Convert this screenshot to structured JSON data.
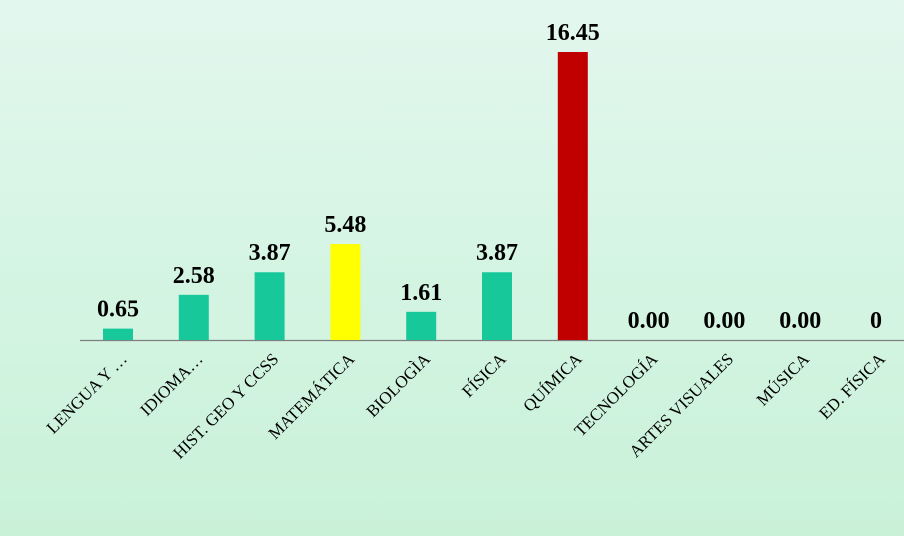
{
  "chart_data": {
    "type": "bar",
    "categories": [
      "LENGUA Y …",
      "IDIOMA…",
      "HIST. GEO Y CCSS",
      "MATEMÁTICA",
      "BIOLOGÌA",
      "FÍSICA",
      "QUÍMICA",
      "TECNOLOGÍA",
      "ARTES VISUALES",
      "MÚSICA",
      "ED. FÍSICA"
    ],
    "values": [
      0.65,
      2.58,
      3.87,
      5.48,
      1.61,
      3.87,
      16.45,
      0.0,
      0.0,
      0.0,
      0
    ],
    "data_labels": [
      "0.65",
      "2.58",
      "3.87",
      "5.48",
      "1.61",
      "3.87",
      "16.45",
      "0.00",
      "0.00",
      "0.00",
      "0"
    ],
    "bar_colors": [
      "#17c99a",
      "#17c99a",
      "#17c99a",
      "#ffff00",
      "#17c99a",
      "#17c99a",
      "#c00000",
      "#17c99a",
      "#17c99a",
      "#17c99a",
      "#17c99a"
    ],
    "ylim": [
      0,
      16.45
    ],
    "grid": false,
    "legend": "none",
    "axis_color": "#7f7f7f"
  }
}
